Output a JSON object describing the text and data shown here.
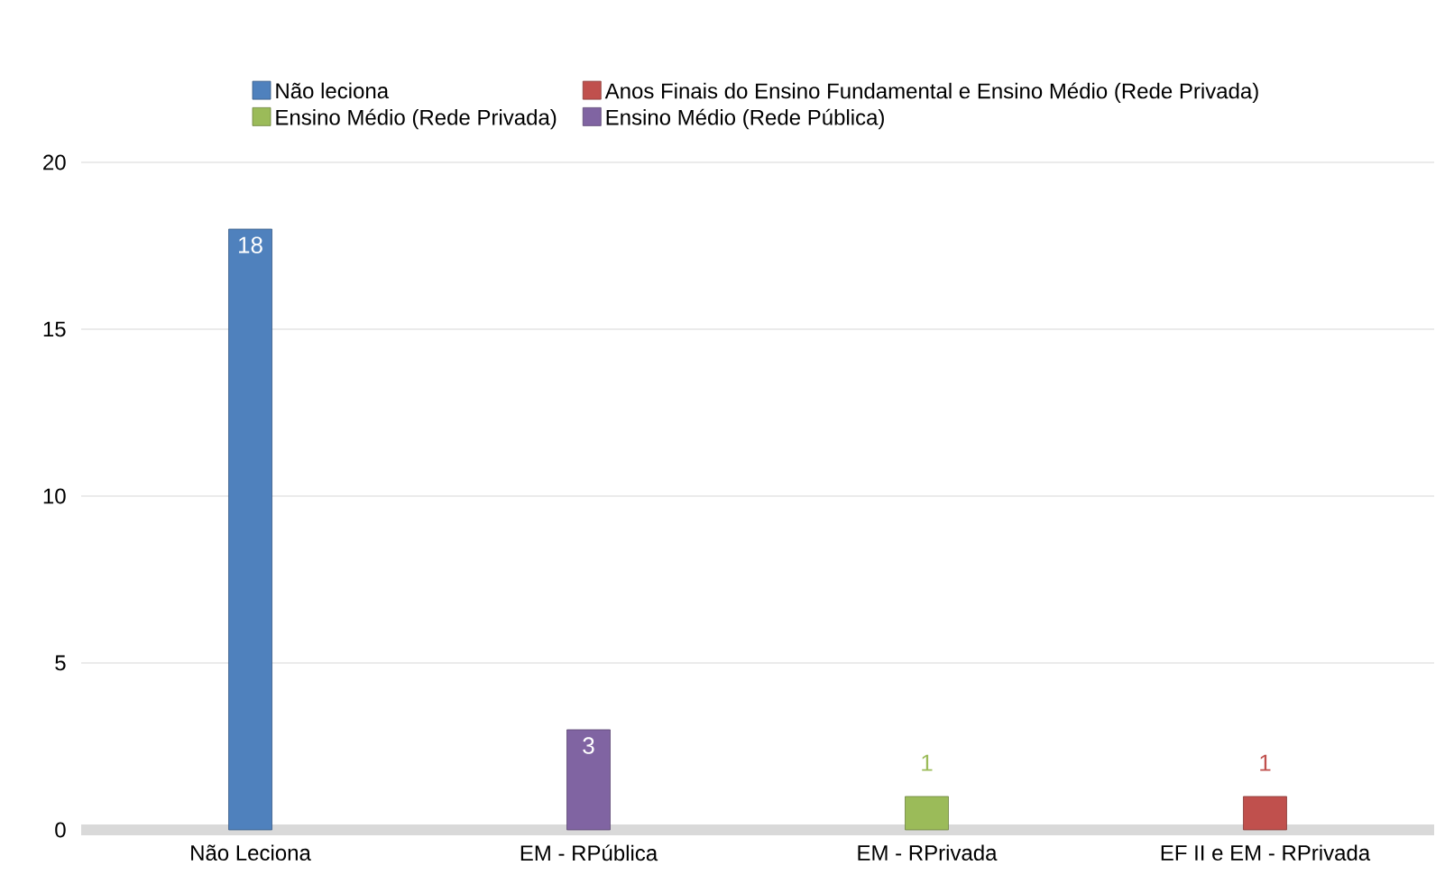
{
  "chart_data": {
    "type": "bar",
    "categories": [
      "Não Leciona",
      "EM - RPública",
      "EM - RPrivada",
      "EF II e EM - RPrivada"
    ],
    "series": [
      {
        "name": "Não leciona",
        "color": "#4f81bd",
        "values": [
          18,
          null,
          null,
          null
        ]
      },
      {
        "name": "Anos Finais do Ensino Fundamental e Ensino Médio (Rede Privada)",
        "color": "#c0504d",
        "values": [
          null,
          null,
          null,
          1
        ]
      },
      {
        "name": "Ensino Médio (Rede Privada)",
        "color": "#9bbb59",
        "values": [
          null,
          null,
          1,
          null
        ]
      },
      {
        "name": "Ensino Médio (Rede Pública)",
        "color": "#8064a2",
        "values": [
          null,
          3,
          null,
          null
        ]
      }
    ],
    "ylim": [
      0,
      20
    ],
    "yticks": [
      0,
      5,
      10,
      15,
      20
    ],
    "grid": "y",
    "legend": "top",
    "data_labels": true
  }
}
